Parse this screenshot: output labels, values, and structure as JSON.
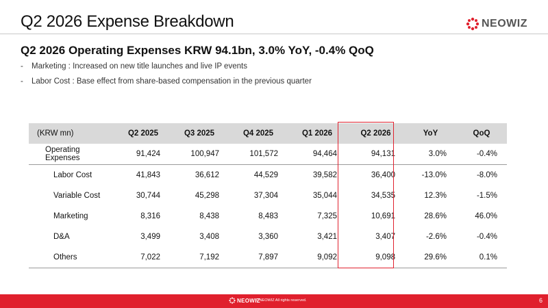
{
  "slide": {
    "title": "Q2 2026 Expense Breakdown",
    "subtitle": "Q2 2026 Operating Expenses KRW 94.1bn, 3.0% YoY, -0.4% QoQ",
    "bullets": [
      {
        "dash": "-",
        "text": "Marketing : Increased on new title launches and live IP events"
      },
      {
        "dash": "-",
        "text": "Labor Cost : Base effect from share-based compensation in the previous quarter"
      }
    ]
  },
  "brand": {
    "logo_text": "NEOWIZ",
    "accent_color": "#e0202d",
    "footer_copyright": "© NEOWIZ All rights reserved.",
    "page_number": "6"
  },
  "table": {
    "headers": [
      "(KRW mn)",
      "Q2 2025",
      "Q3 2025",
      "Q4 2025",
      "Q1 2026",
      "Q2 2026",
      "YoY",
      "QoQ"
    ],
    "highlighted_column": "Q2 2026",
    "rows": [
      [
        "Operating Expenses",
        "91,424",
        "100,947",
        "101,572",
        "94,464",
        "94,131",
        "3.0%",
        "-0.4%"
      ],
      [
        "Labor Cost",
        "41,843",
        "36,612",
        "44,529",
        "39,582",
        "36,400",
        "-13.0%",
        "-8.0%"
      ],
      [
        "Variable Cost",
        "30,744",
        "45,298",
        "37,304",
        "35,044",
        "34,535",
        "12.3%",
        "-1.5%"
      ],
      [
        "Marketing",
        "8,316",
        "8,438",
        "8,483",
        "7,325",
        "10,691",
        "28.6%",
        "46.0%"
      ],
      [
        "D&A",
        "3,499",
        "3,408",
        "3,360",
        "3,421",
        "3,407",
        "-2.6%",
        "-0.4%"
      ],
      [
        "Others",
        "7,022",
        "7,192",
        "7,897",
        "9,092",
        "9,098",
        "29.6%",
        "0.1%"
      ]
    ]
  }
}
